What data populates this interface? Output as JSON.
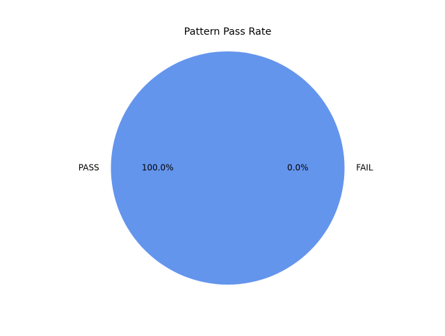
{
  "chart_data": {
    "type": "pie",
    "title": "Pattern Pass Rate",
    "slices": [
      {
        "label": "PASS",
        "value": 100.0,
        "pct_label": "100.0%",
        "color": "#6495ED"
      },
      {
        "label": "FAIL",
        "value": 0.0,
        "pct_label": "0.0%",
        "color": "#F08080"
      }
    ]
  }
}
